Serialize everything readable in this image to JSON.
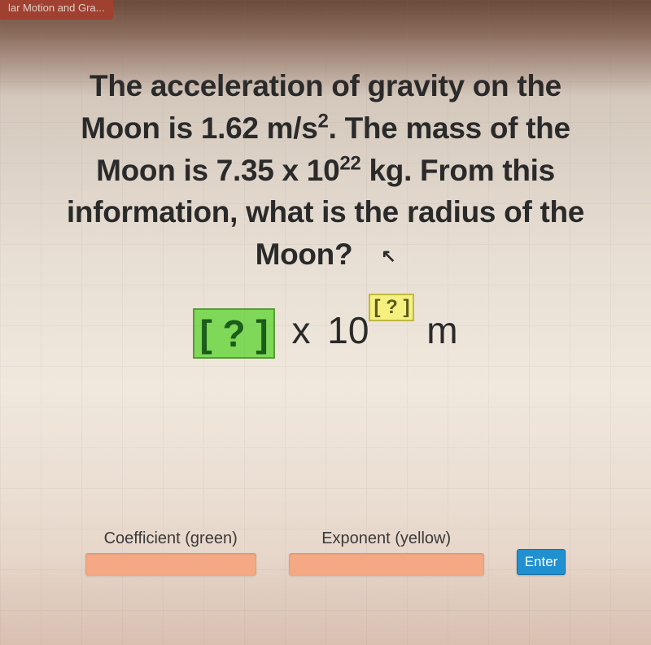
{
  "tab": {
    "label": "lar Motion and Gra..."
  },
  "question": {
    "line1": "The acceleration of gravity on the",
    "line2_part1": "Moon is ",
    "gravity_value": "1.62 m/s",
    "gravity_exponent": "2",
    "line2_part2": ". The mass of the",
    "line3_part1": "Moon is ",
    "mass_coefficient": "7.35 x 10",
    "mass_exponent": "22",
    "line3_part2": " kg. From this",
    "line4": "information, what is the radius of the",
    "line5": "Moon?"
  },
  "answer_format": {
    "coefficient_placeholder": "[ ? ]",
    "times": " x ",
    "base": "10",
    "exponent_placeholder": "[ ? ]",
    "unit": " m"
  },
  "inputs": {
    "coefficient_label": "Coefficient (green)",
    "exponent_label": "Exponent (yellow)",
    "enter_label": "Enter"
  },
  "colors": {
    "coefficient_bg": "#7fd858",
    "exponent_bg": "#f5f080",
    "input_bg": "#f4a884",
    "enter_bg": "#2090d0"
  }
}
